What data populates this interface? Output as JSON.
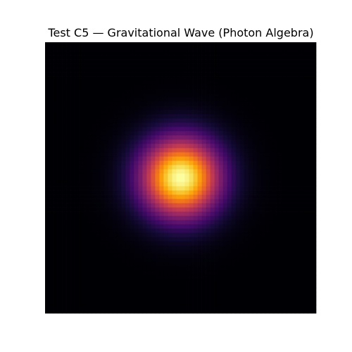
{
  "chart_data": {
    "type": "heatmap",
    "title": "Test C5 — Gravitational Wave (Photon Algebra)",
    "colormap": "inferno",
    "grid": false,
    "axes_visible": false,
    "grid_size": [
      64,
      64
    ],
    "field": {
      "kind": "gaussian",
      "center": [
        32,
        32
      ],
      "sigma": 6.5,
      "peak": 1.0
    },
    "background_color": "#000004",
    "peak_color": "#fcffa4"
  }
}
